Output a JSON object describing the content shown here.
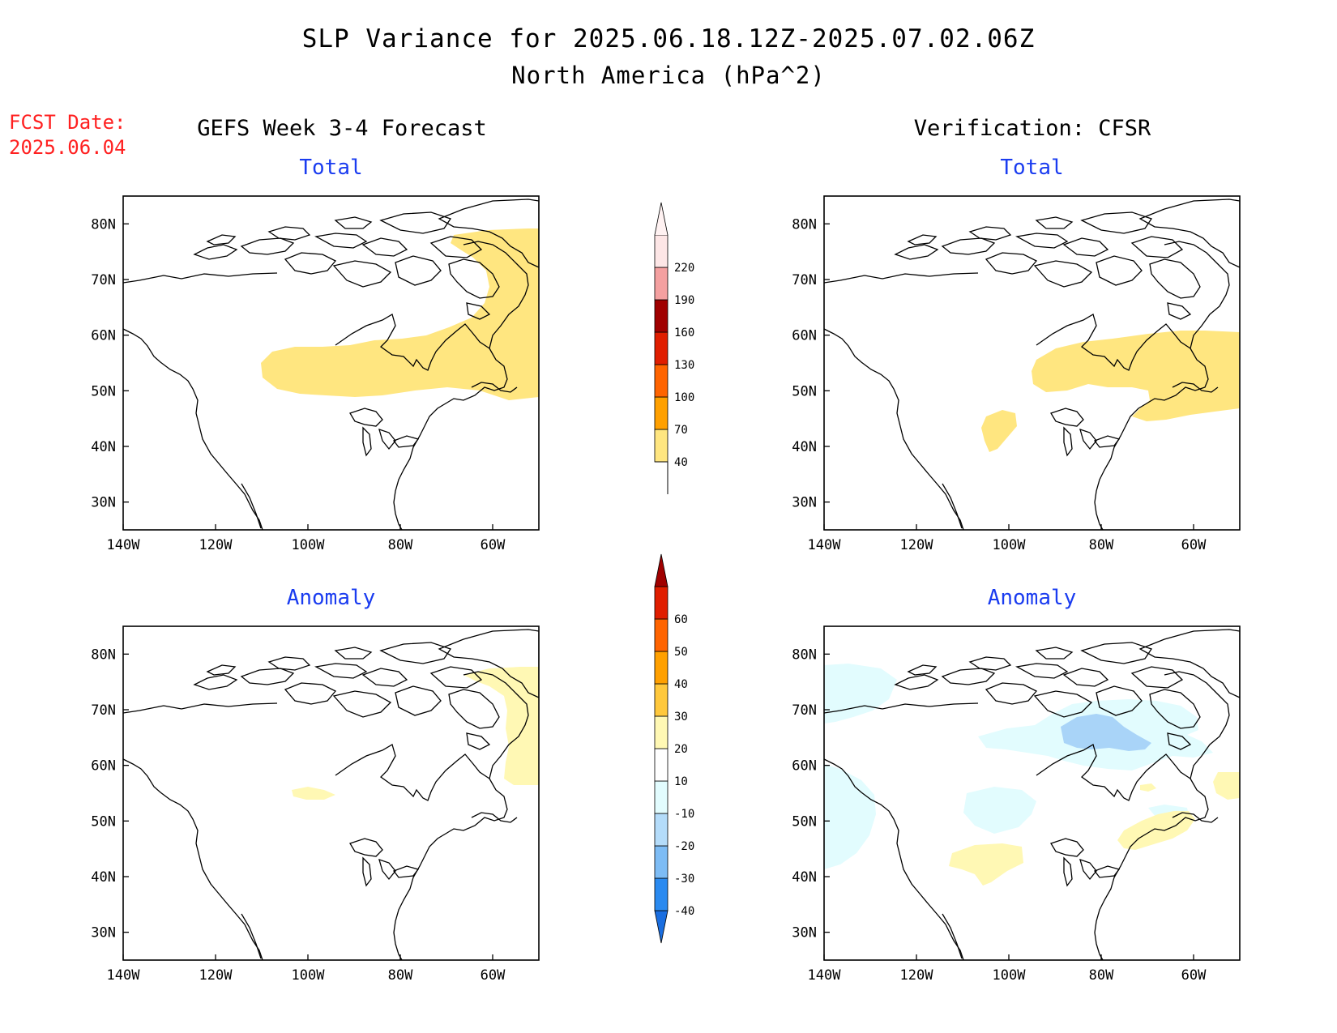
{
  "title": {
    "line1": "SLP Variance for 2025.06.18.12Z-2025.07.02.06Z",
    "line2": "North America (hPa^2)"
  },
  "fcst_date": {
    "label": "FCST Date:",
    "value": "2025.06.04"
  },
  "columns": {
    "left": "GEFS Week 3-4 Forecast",
    "right": "Verification: CFSR"
  },
  "panels": [
    {
      "id": "fcst-total",
      "subtitle": "Total"
    },
    {
      "id": "ver-total",
      "subtitle": "Total"
    },
    {
      "id": "fcst-anomaly",
      "subtitle": "Anomaly"
    },
    {
      "id": "ver-anomaly",
      "subtitle": "Anomaly"
    }
  ],
  "axes": {
    "lat_ticks": [
      "30N",
      "40N",
      "50N",
      "60N",
      "70N",
      "80N"
    ],
    "lat_values": [
      30,
      40,
      50,
      60,
      70,
      80
    ],
    "lon_ticks": [
      "140W",
      "120W",
      "100W",
      "80W",
      "60W"
    ],
    "lon_values": [
      -140,
      -120,
      -100,
      -80,
      -60
    ],
    "lon_range": [
      -140,
      -50
    ],
    "lat_range": [
      25,
      85
    ]
  },
  "colorbars": {
    "total": {
      "labels": [
        "40",
        "70",
        "100",
        "130",
        "160",
        "190",
        "220"
      ],
      "colors": [
        "#ffe680",
        "#ffa000",
        "#ff6400",
        "#e01e00",
        "#a00000",
        "#f4a0a0",
        "#fde6e6"
      ]
    },
    "anomaly": {
      "labels": [
        "-40",
        "-30",
        "-20",
        "-10",
        "10",
        "20",
        "30",
        "40",
        "50",
        "60"
      ],
      "colors": [
        "#1a6ee0",
        "#2a8af0",
        "#7dbcf5",
        "#b4dcfa",
        "#e2fcfe",
        "#ffffff",
        "#fff8b4",
        "#ffc83c",
        "#ffa000",
        "#ff6400",
        "#e01e00",
        "#a00000"
      ]
    }
  }
}
